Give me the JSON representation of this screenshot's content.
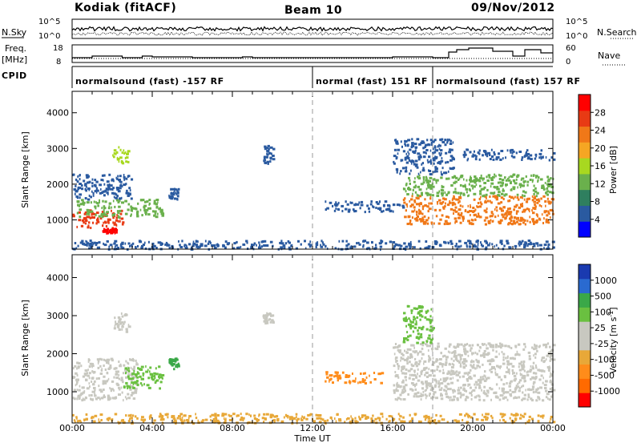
{
  "header": {
    "station": "Kodiak (fitACF)",
    "beam": "Beam 10",
    "date": "09/Nov/2012"
  },
  "side_labels": {
    "nsky": "N.Sky",
    "freq": "Freq.",
    "freq_unit": "[MHz]",
    "cpid": "CPID",
    "nsearch": "N.Search",
    "nave": "Nave"
  },
  "noise_panel": {
    "left_ticks": [
      "10^5",
      "10^0"
    ],
    "right_ticks": [
      "10^5",
      "10^0"
    ]
  },
  "freq_panel": {
    "left_ticks": [
      "18",
      "8"
    ],
    "right_ticks": [
      "60",
      "0"
    ]
  },
  "cpid_segments": [
    {
      "label": "normalsound (fast) -157 RF",
      "start_hour": 0,
      "end_hour": 12
    },
    {
      "label": "normal (fast) 151 RF",
      "start_hour": 12,
      "end_hour": 18
    },
    {
      "label": "normalsound (fast) 157 RF",
      "start_hour": 18,
      "end_hour": 24
    }
  ],
  "x_axis": {
    "label": "Time UT",
    "ticks": [
      "00:00",
      "04:00",
      "08:00",
      "12:00",
      "16:00",
      "20:00",
      "00:00"
    ],
    "range_hours": [
      0,
      24
    ]
  },
  "colors": {
    "power": [
      "#0000ff",
      "#2a5aa0",
      "#2f7f5f",
      "#6ab04c",
      "#a8d820",
      "#f5a623",
      "#f07818",
      "#e83a14",
      "#ff0000"
    ],
    "velocity": [
      "#ff0000",
      "#ff6a00",
      "#ff8c1a",
      "#e8a838",
      "#c8c8c0",
      "#c8c8c0",
      "#6ac040",
      "#3aa848",
      "#2a6ad0",
      "#1a3ab0"
    ]
  },
  "chart_data": [
    {
      "type": "heatmap",
      "panel": "power",
      "ylabel": "Slant Range [km]",
      "y_ticks": [
        1000,
        2000,
        3000,
        4000
      ],
      "ylim": [
        180,
        4600
      ],
      "xlim": [
        0,
        24
      ],
      "colorbar_label": "Power [dB]",
      "colorbar_ticks": [
        "4",
        "8",
        "12",
        "16",
        "20",
        "24",
        "28"
      ],
      "colorbar_range": [
        0,
        30
      ],
      "regions": [
        {
          "t0": 0.0,
          "t1": 2.5,
          "r0": 800,
          "r1": 1300,
          "c": "#e83a14"
        },
        {
          "t0": 0.2,
          "t1": 4.5,
          "r0": 1100,
          "r1": 1600,
          "c": "#6ab04c"
        },
        {
          "t0": 0.0,
          "t1": 3.0,
          "r0": 1600,
          "r1": 2300,
          "c": "#2a5aa0"
        },
        {
          "t0": 2.0,
          "t1": 2.8,
          "r0": 2600,
          "r1": 3100,
          "c": "#a8d820"
        },
        {
          "t0": 1.5,
          "t1": 2.2,
          "r0": 650,
          "r1": 780,
          "c": "#ff0000"
        },
        {
          "t0": 4.8,
          "t1": 5.3,
          "r0": 1600,
          "r1": 1900,
          "c": "#2a5aa0"
        },
        {
          "t0": 9.5,
          "t1": 10.0,
          "r0": 2600,
          "r1": 3100,
          "c": "#2a5aa0"
        },
        {
          "t0": 12.6,
          "t1": 16.5,
          "r0": 1250,
          "r1": 1550,
          "c": "#2a5aa0"
        },
        {
          "t0": 16.5,
          "t1": 24.0,
          "r0": 900,
          "r1": 1700,
          "c": "#f07818"
        },
        {
          "t0": 16.5,
          "t1": 24.0,
          "r0": 1700,
          "r1": 2300,
          "c": "#6ab04c"
        },
        {
          "t0": 16.0,
          "t1": 19.0,
          "r0": 2300,
          "r1": 3300,
          "c": "#2a5aa0"
        },
        {
          "t0": 19.5,
          "t1": 24.0,
          "r0": 2700,
          "r1": 3000,
          "c": "#2a5aa0"
        },
        {
          "t0": 0.0,
          "t1": 24.0,
          "r0": 200,
          "r1": 450,
          "c": "#2a5aa0"
        }
      ]
    },
    {
      "type": "heatmap",
      "panel": "velocity",
      "ylabel": "Slant Range [km]",
      "y_ticks": [
        1000,
        2000,
        3000,
        4000
      ],
      "ylim": [
        180,
        4600
      ],
      "xlim": [
        0,
        24
      ],
      "colorbar_label": "Velocity [m s^-1]",
      "colorbar_ticks": [
        "-1000",
        "-500",
        "-100",
        "-25",
        "25",
        "100",
        "500",
        "1000"
      ],
      "regions": [
        {
          "t0": 0.0,
          "t1": 3.2,
          "r0": 800,
          "r1": 1900,
          "c": "#c8c8c0"
        },
        {
          "t0": 2.5,
          "t1": 4.5,
          "r0": 1100,
          "r1": 1700,
          "c": "#6ac040"
        },
        {
          "t0": 2.0,
          "t1": 2.8,
          "r0": 2600,
          "r1": 3100,
          "c": "#c8c8c0"
        },
        {
          "t0": 4.8,
          "t1": 5.3,
          "r0": 1600,
          "r1": 1900,
          "c": "#3aa848"
        },
        {
          "t0": 9.5,
          "t1": 10.0,
          "r0": 2800,
          "r1": 3100,
          "c": "#c8c8c0"
        },
        {
          "t0": 12.6,
          "t1": 15.5,
          "r0": 1250,
          "r1": 1550,
          "c": "#ff8c1a"
        },
        {
          "t0": 16.0,
          "t1": 24.0,
          "r0": 800,
          "r1": 2300,
          "c": "#c8c8c0"
        },
        {
          "t0": 16.5,
          "t1": 18.0,
          "r0": 2300,
          "r1": 3300,
          "c": "#6ac040"
        },
        {
          "t0": 0.0,
          "t1": 24.0,
          "r0": 200,
          "r1": 450,
          "c": "#e8a838"
        }
      ]
    }
  ]
}
